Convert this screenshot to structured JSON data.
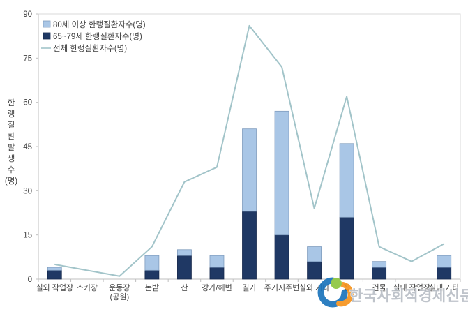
{
  "chart_data": {
    "type": "bar+line",
    "title": "",
    "categories": [
      "실외 작업장",
      "스키장",
      "운동장\n(공원)",
      "논밭",
      "산",
      "강가/해변",
      "길가",
      "주거지주변",
      "실외 기타",
      "집",
      "건물",
      "실내 작업장",
      "실내 기타"
    ],
    "series": [
      {
        "name": "80세 이상 한랭질환자수(명)",
        "type": "bar",
        "stack": "top",
        "color": "#a9c6e6",
        "border": "#7f9cbe",
        "values": [
          1,
          0,
          0,
          5,
          2,
          4,
          28,
          42,
          5,
          25,
          2,
          0,
          4
        ]
      },
      {
        "name": "65~79세 한랭질환자수(명)",
        "type": "bar",
        "stack": "bottom",
        "color": "#1f3864",
        "border": "#16294d",
        "values": [
          3,
          0,
          0,
          3,
          8,
          4,
          23,
          15,
          6,
          21,
          4,
          0,
          4
        ]
      },
      {
        "name": "전체 한랭질환자수(명)",
        "type": "line",
        "color": "#a2c4c9",
        "values": [
          5,
          3,
          1,
          11,
          33,
          38,
          86,
          72,
          24,
          62,
          11,
          6,
          12
        ]
      }
    ],
    "xlabel": "",
    "ylabel": "한랭질환발생수(명)",
    "ylabel_chars": [
      "한",
      "랭",
      "질",
      "환",
      "발",
      "생",
      "수",
      "(명)"
    ],
    "ylim": [
      0,
      90
    ],
    "yticks": [
      0,
      15,
      30,
      45,
      60,
      75,
      90
    ],
    "grid": false,
    "legend_position": "top-left"
  },
  "watermark": {
    "text": "한국사회적경제신문"
  },
  "colors": {
    "axis": "#bfbfbf",
    "plot_border": "#d9d9d9",
    "text": "#404040",
    "background": "#ffffff",
    "watermark_text": "#b9bec6",
    "logo_blue": "#1c75bc",
    "logo_green": "#8dc63f",
    "logo_orange": "#f7941e"
  }
}
